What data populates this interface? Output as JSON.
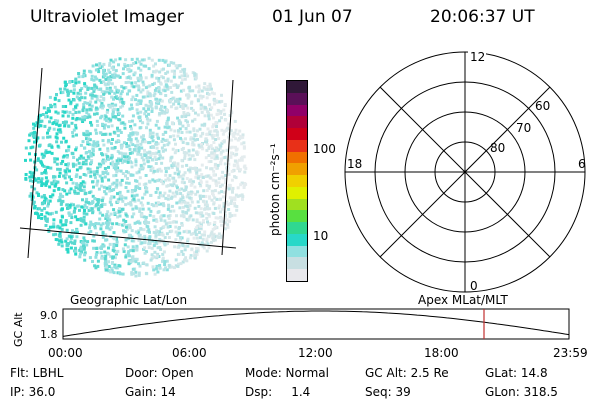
{
  "header": {
    "title": "Ultraviolet Imager",
    "date": "01 Jun 07",
    "time": "20:06:37 UT"
  },
  "colorbar": {
    "label": "photon cm⁻²s⁻¹",
    "ticks": [
      "100",
      "10"
    ],
    "colors": [
      "#e8e8ec",
      "#c8dfe2",
      "#90e0e0",
      "#28d8c8",
      "#30d890",
      "#58e040",
      "#a0e020",
      "#e0f000",
      "#f0d000",
      "#f0a000",
      "#f07000",
      "#e83018",
      "#d00018",
      "#b00038",
      "#900068",
      "#5a1058",
      "#301838"
    ]
  },
  "polar": {
    "mlt_labels": {
      "top": "12",
      "bottom": "0",
      "left": "18",
      "right": "6"
    },
    "lat_labels": [
      "60",
      "70",
      "80"
    ]
  },
  "timeline": {
    "left_title": "Geographic Lat/Lon",
    "right_title": "Apex MLat/MLT",
    "axis_label": "GC Alt",
    "y_ticks": [
      "9.0",
      "1.8"
    ],
    "x_ticks": [
      "00:00",
      "06:00",
      "12:00",
      "18:00",
      "23:59"
    ],
    "marker_color": "#c03030"
  },
  "info": {
    "row1": [
      "Flt: LBHL",
      "Door: Open",
      "Mode: Normal",
      "GC Alt: 2.5 Re",
      "GLat: 14.8"
    ],
    "row2": [
      "IP: 36.0",
      "Gain: 14",
      "Dsp:     1.4",
      "Seq: 39",
      "GLon: 318.5"
    ]
  }
}
